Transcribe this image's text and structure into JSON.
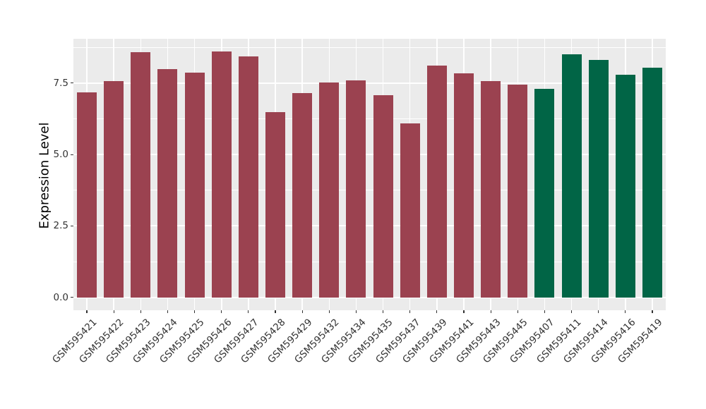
{
  "chart_data": {
    "type": "bar",
    "title": "",
    "xlabel": "",
    "ylabel": "Expression Level",
    "categories": [
      "GSM595421",
      "GSM595422",
      "GSM595423",
      "GSM595424",
      "GSM595425",
      "GSM595426",
      "GSM595427",
      "GSM595428",
      "GSM595429",
      "GSM595432",
      "GSM595434",
      "GSM595435",
      "GSM595437",
      "GSM595439",
      "GSM595441",
      "GSM595443",
      "GSM595445",
      "GSM595407",
      "GSM595411",
      "GSM595414",
      "GSM595416",
      "GSM595419"
    ],
    "values": [
      7.18,
      7.57,
      8.58,
      7.98,
      7.86,
      8.6,
      8.43,
      6.48,
      7.16,
      7.53,
      7.59,
      7.07,
      6.1,
      8.12,
      7.84,
      7.57,
      7.44,
      7.3,
      8.5,
      8.32,
      7.78,
      8.05
    ],
    "bar_groups": [
      "group1",
      "group1",
      "group1",
      "group1",
      "group1",
      "group1",
      "group1",
      "group1",
      "group1",
      "group1",
      "group1",
      "group1",
      "group1",
      "group1",
      "group1",
      "group1",
      "group1",
      "group2",
      "group2",
      "group2",
      "group2",
      "group2"
    ],
    "yticks": [
      {
        "value": 0,
        "label": "0.0"
      },
      {
        "value": 2.5,
        "label": "2.5"
      },
      {
        "value": 5,
        "label": "5.0"
      },
      {
        "value": 7.5,
        "label": "7.5"
      }
    ],
    "y_minor_ticks": [
      1.25,
      3.75,
      6.25,
      8.75
    ],
    "ylim": [
      -0.45,
      9.05
    ],
    "grid": true,
    "legend": "none",
    "colors": {
      "group1": "#9B4250",
      "group2": "#016546",
      "panel_background": "#EBEBEB",
      "gridline": "#FFFFFF",
      "tick_mark": "#333333",
      "tick_text": "#333333"
    }
  }
}
